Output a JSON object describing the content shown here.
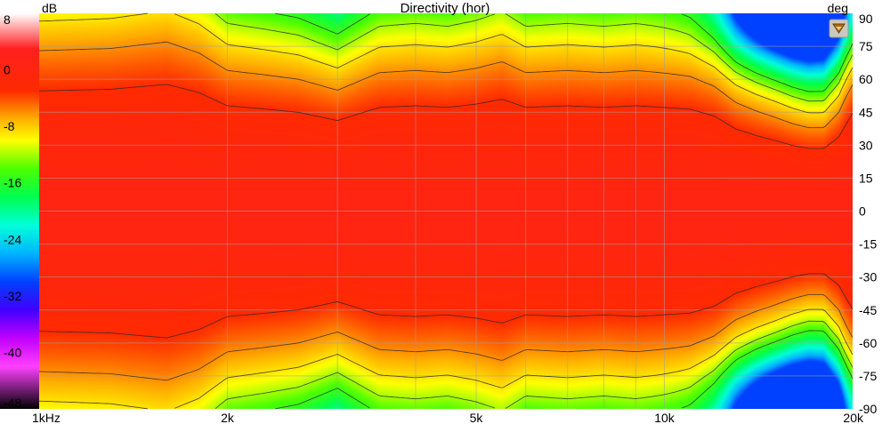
{
  "chart_data": {
    "type": "heatmap",
    "title": "Directivity (hor)",
    "colorbar": {
      "unit": "dB",
      "ticks": [
        8,
        0,
        -8,
        -16,
        -24,
        -32,
        -40,
        -48
      ],
      "range": [
        -48,
        8
      ],
      "stops": [
        {
          "value": 8,
          "color": "#ffffff"
        },
        {
          "value": 3,
          "color": "#ff2020"
        },
        {
          "value": -3,
          "color": "#ff2a00"
        },
        {
          "value": -7,
          "color": "#ffb000"
        },
        {
          "value": -10,
          "color": "#ffff00"
        },
        {
          "value": -14,
          "color": "#4cff00"
        },
        {
          "value": -18,
          "color": "#00ff50"
        },
        {
          "value": -22,
          "color": "#00ffd8"
        },
        {
          "value": -26,
          "color": "#00b4ff"
        },
        {
          "value": -30,
          "color": "#0040ff"
        },
        {
          "value": -34,
          "color": "#4000ff"
        },
        {
          "value": -38,
          "color": "#c000ff"
        },
        {
          "value": -42,
          "color": "#ff40ff"
        },
        {
          "value": -48,
          "color": "#000000"
        }
      ]
    },
    "xaxis": {
      "scale": "log",
      "range": [
        1000,
        20000
      ],
      "ticks": [
        {
          "value": 1000,
          "label": "1kHz"
        },
        {
          "value": 2000,
          "label": "2k"
        },
        {
          "value": 5000,
          "label": "5k"
        },
        {
          "value": 10000,
          "label": "10k"
        },
        {
          "value": 20000,
          "label": "20k"
        }
      ],
      "minor": [
        3000,
        4000,
        6000,
        7000,
        8000,
        9000
      ]
    },
    "yaxis": {
      "unit": "deg",
      "range": [
        -90,
        90
      ],
      "ticks": [
        90,
        75,
        60,
        45,
        30,
        15,
        0,
        -15,
        -30,
        -45,
        -60,
        -75,
        -90
      ]
    },
    "contours_db": [
      -3,
      -6,
      -9,
      -12,
      -15
    ],
    "beamwidth_profile": {
      "freq": [
        1000,
        1300,
        1600,
        1800,
        2000,
        2300,
        2600,
        3000,
        3500,
        4000,
        4500,
        5000,
        5500,
        6000,
        7000,
        8000,
        9000,
        10000,
        11000,
        12000,
        13000,
        14000,
        15000,
        16000,
        17000,
        18000,
        19000,
        20000
      ],
      "minus6db_angle": [
        73,
        74,
        77,
        72,
        64,
        62,
        60,
        55,
        63,
        64,
        63,
        65,
        68,
        63,
        64,
        63,
        64,
        63,
        62,
        58,
        50,
        46,
        43,
        40,
        38,
        38,
        45,
        60
      ]
    },
    "dip": {
      "freq": 16000,
      "angle": 88,
      "depth_db": -28
    }
  }
}
